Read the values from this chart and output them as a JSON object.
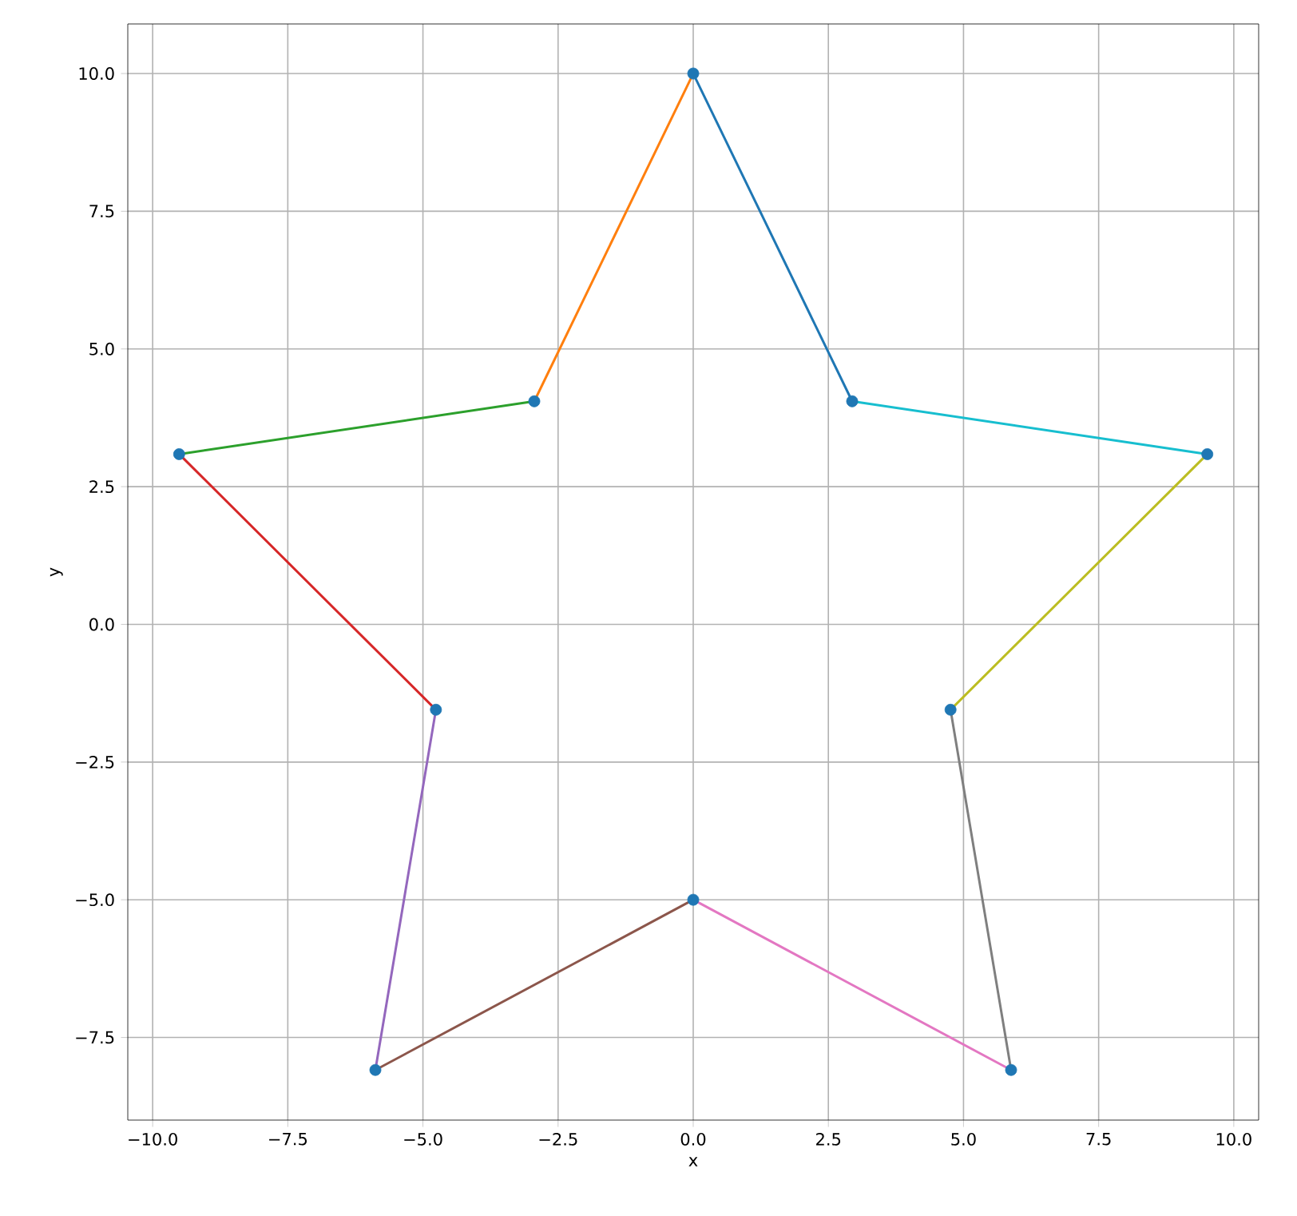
{
  "chart_data": {
    "type": "line",
    "xlabel": "x",
    "ylabel": "y",
    "grid": true,
    "xlim": [
      -10.46,
      10.46
    ],
    "ylim": [
      -9.0,
      10.9
    ],
    "xticks": [
      {
        "value": -10,
        "label": "−10.0"
      },
      {
        "value": -7.5,
        "label": "−7.5"
      },
      {
        "value": -5,
        "label": "−5.0"
      },
      {
        "value": -2.5,
        "label": "−2.5"
      },
      {
        "value": 0,
        "label": "0.0"
      },
      {
        "value": 2.5,
        "label": "2.5"
      },
      {
        "value": 5,
        "label": "5.0"
      },
      {
        "value": 7.5,
        "label": "7.5"
      },
      {
        "value": 10,
        "label": "10.0"
      }
    ],
    "yticks": [
      {
        "value": -7.5,
        "label": "−7.5"
      },
      {
        "value": -5,
        "label": "−5.0"
      },
      {
        "value": -2.5,
        "label": "−2.5"
      },
      {
        "value": 0,
        "label": "0.0"
      },
      {
        "value": 2.5,
        "label": "2.5"
      },
      {
        "value": 5,
        "label": "5.0"
      },
      {
        "value": 7.5,
        "label": "7.5"
      },
      {
        "value": 10,
        "label": "10.0"
      }
    ],
    "series": [
      {
        "color": "#1f77b4",
        "x": [
          0,
          2.94
        ],
        "values": [
          10,
          4.05
        ]
      },
      {
        "color": "#ff7f0e",
        "x": [
          0,
          -2.94
        ],
        "values": [
          10,
          4.05
        ]
      },
      {
        "color": "#2ca02c",
        "x": [
          -2.94,
          -9.51
        ],
        "values": [
          4.05,
          3.09
        ]
      },
      {
        "color": "#d62728",
        "x": [
          -9.51,
          -4.76
        ],
        "values": [
          3.09,
          -1.55
        ]
      },
      {
        "color": "#9467bd",
        "x": [
          -4.76,
          -5.88
        ],
        "values": [
          -1.55,
          -8.09
        ]
      },
      {
        "color": "#8c564b",
        "x": [
          -5.88,
          0
        ],
        "values": [
          -8.09,
          -5
        ]
      },
      {
        "color": "#e377c2",
        "x": [
          0,
          5.88
        ],
        "values": [
          -5,
          -8.09
        ]
      },
      {
        "color": "#7f7f7f",
        "x": [
          5.88,
          4.76
        ],
        "values": [
          -8.09,
          -1.55
        ]
      },
      {
        "color": "#bcbd22",
        "x": [
          4.76,
          9.51
        ],
        "values": [
          -1.55,
          3.09
        ]
      },
      {
        "color": "#17becf",
        "x": [
          9.51,
          2.94
        ],
        "values": [
          3.09,
          4.05
        ]
      },
      {
        "type": "scatter",
        "color": "#1f77b4",
        "marker": "circle",
        "x": [
          0,
          2.94,
          9.51,
          4.76,
          5.88,
          0,
          -5.88,
          -4.76,
          -9.51,
          -2.94
        ],
        "values": [
          10,
          4.05,
          3.09,
          -1.55,
          -8.09,
          -5,
          -8.09,
          -1.55,
          3.09,
          4.05
        ]
      }
    ]
  }
}
